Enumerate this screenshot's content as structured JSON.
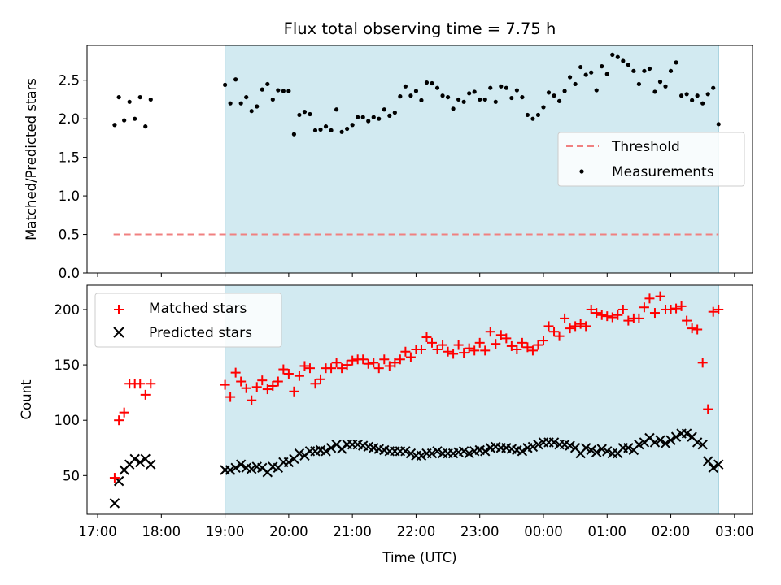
{
  "title": "Flux total observing time = 7.75 h",
  "xlabel": "Time (UTC)",
  "x_ticks": [
    "17:00",
    "18:00",
    "19:00",
    "20:00",
    "21:00",
    "22:00",
    "23:00",
    "00:00",
    "01:00",
    "02:00",
    "03:00"
  ],
  "colors": {
    "threshold": "#f08080",
    "measurements": "#000000",
    "matched": "#ff0000",
    "predicted": "#000000",
    "span": "#add8e6",
    "span_edge": "#8fc6d6"
  },
  "chart_data": [
    {
      "type": "scatter",
      "ylabel": "Matched/Predicted stars",
      "ylim": [
        0,
        2.95
      ],
      "xlim": [
        "16:50",
        "03:17"
      ],
      "y_ticks": [
        "0.0",
        "0.5",
        "1.0",
        "1.5",
        "2.0",
        "2.5"
      ],
      "y_tick_values": [
        0,
        0.5,
        1.0,
        1.5,
        2.0,
        2.5
      ],
      "shaded_span": [
        "19:00",
        "02:45"
      ],
      "legend": {
        "position": "center-right",
        "entries": [
          "Threshold",
          "Measurements"
        ]
      },
      "threshold": {
        "name": "Threshold",
        "value": 0.5,
        "x_range": [
          "17:15",
          "02:45"
        ]
      },
      "series": [
        {
          "name": "Measurements",
          "x": [
            "17:16",
            "17:20",
            "17:25",
            "17:30",
            "17:35",
            "17:40",
            "17:45",
            "17:50",
            "19:00",
            "19:05",
            "19:10",
            "19:15",
            "19:20",
            "19:25",
            "19:30",
            "19:35",
            "19:40",
            "19:45",
            "19:50",
            "19:55",
            "20:00",
            "20:05",
            "20:10",
            "20:15",
            "20:20",
            "20:25",
            "20:30",
            "20:35",
            "20:40",
            "20:45",
            "20:50",
            "20:55",
            "21:00",
            "21:05",
            "21:10",
            "21:15",
            "21:20",
            "21:25",
            "21:30",
            "21:35",
            "21:40",
            "21:45",
            "21:50",
            "21:55",
            "22:00",
            "22:05",
            "22:10",
            "22:15",
            "22:20",
            "22:25",
            "22:30",
            "22:35",
            "22:40",
            "22:45",
            "22:50",
            "22:55",
            "23:00",
            "23:05",
            "23:10",
            "23:15",
            "23:20",
            "23:25",
            "23:30",
            "23:35",
            "23:40",
            "23:45",
            "23:50",
            "23:55",
            "00:00",
            "00:05",
            "00:10",
            "00:15",
            "00:20",
            "00:25",
            "00:30",
            "00:35",
            "00:40",
            "00:45",
            "00:50",
            "00:55",
            "01:00",
            "01:05",
            "01:10",
            "01:15",
            "01:20",
            "01:25",
            "01:30",
            "01:35",
            "01:40",
            "01:45",
            "01:50",
            "01:55",
            "02:00",
            "02:05",
            "02:10",
            "02:15",
            "02:20",
            "02:25",
            "02:30",
            "02:35",
            "02:40",
            "02:45"
          ],
          "y": [
            1.92,
            2.28,
            1.98,
            2.22,
            2.0,
            2.28,
            1.9,
            2.25,
            2.44,
            2.2,
            2.51,
            2.2,
            2.28,
            2.1,
            2.16,
            2.38,
            2.45,
            2.25,
            2.37,
            2.36,
            2.36,
            1.8,
            2.05,
            2.09,
            2.06,
            1.85,
            1.86,
            1.9,
            1.85,
            2.12,
            1.83,
            1.87,
            1.92,
            2.02,
            2.02,
            1.97,
            2.02,
            2.0,
            2.12,
            2.04,
            2.08,
            2.29,
            2.42,
            2.3,
            2.36,
            2.24,
            2.47,
            2.46,
            2.4,
            2.3,
            2.28,
            2.13,
            2.25,
            2.22,
            2.33,
            2.35,
            2.25,
            2.25,
            2.4,
            2.22,
            2.42,
            2.4,
            2.27,
            2.37,
            2.28,
            2.05,
            2.0,
            2.05,
            2.15,
            2.34,
            2.3,
            2.23,
            2.36,
            2.54,
            2.45,
            2.67,
            2.57,
            2.6,
            2.37,
            2.68,
            2.58,
            2.83,
            2.8,
            2.75,
            2.7,
            2.62,
            2.45,
            2.62,
            2.65,
            2.35,
            2.48,
            2.42,
            2.62,
            2.73,
            2.3,
            2.32,
            2.24,
            2.3,
            2.2,
            2.32,
            2.4,
            1.93
          ]
        }
      ]
    },
    {
      "type": "scatter",
      "ylabel": "Count",
      "ylim": [
        15,
        222
      ],
      "xlim": [
        "16:50",
        "03:17"
      ],
      "y_ticks": [
        "50",
        "100",
        "150",
        "200"
      ],
      "y_tick_values": [
        50,
        100,
        150,
        200
      ],
      "shaded_span": [
        "19:00",
        "02:45"
      ],
      "legend": {
        "position": "top-left",
        "entries": [
          "Matched stars",
          "Predicted stars"
        ]
      },
      "series": [
        {
          "name": "Matched stars",
          "x": [
            "17:16",
            "17:20",
            "17:25",
            "17:30",
            "17:35",
            "17:40",
            "17:45",
            "17:50",
            "19:00",
            "19:05",
            "19:10",
            "19:15",
            "19:20",
            "19:25",
            "19:30",
            "19:35",
            "19:40",
            "19:45",
            "19:50",
            "19:55",
            "20:00",
            "20:05",
            "20:10",
            "20:15",
            "20:20",
            "20:25",
            "20:30",
            "20:35",
            "20:40",
            "20:45",
            "20:50",
            "20:55",
            "21:00",
            "21:05",
            "21:10",
            "21:15",
            "21:20",
            "21:25",
            "21:30",
            "21:35",
            "21:40",
            "21:45",
            "21:50",
            "21:55",
            "22:00",
            "22:05",
            "22:10",
            "22:15",
            "22:20",
            "22:25",
            "22:30",
            "22:35",
            "22:40",
            "22:45",
            "22:50",
            "22:55",
            "23:00",
            "23:05",
            "23:10",
            "23:15",
            "23:20",
            "23:25",
            "23:30",
            "23:35",
            "23:40",
            "23:45",
            "23:50",
            "23:55",
            "00:00",
            "00:05",
            "00:10",
            "00:15",
            "00:20",
            "00:25",
            "00:30",
            "00:35",
            "00:40",
            "00:45",
            "00:50",
            "00:55",
            "01:00",
            "01:05",
            "01:10",
            "01:15",
            "01:20",
            "01:25",
            "01:30",
            "01:35",
            "01:40",
            "01:45",
            "01:50",
            "01:55",
            "02:00",
            "02:05",
            "02:10",
            "02:15",
            "02:20",
            "02:25",
            "02:30",
            "02:35",
            "02:40",
            "02:45"
          ],
          "y": [
            48,
            100,
            107,
            133,
            133,
            133,
            123,
            133,
            132,
            121,
            143,
            135,
            129,
            118,
            130,
            136,
            128,
            131,
            135,
            146,
            142,
            126,
            140,
            149,
            147,
            133,
            137,
            147,
            147,
            152,
            147,
            150,
            154,
            155,
            155,
            151,
            152,
            147,
            155,
            149,
            152,
            155,
            162,
            157,
            164,
            164,
            175,
            170,
            164,
            168,
            162,
            160,
            168,
            161,
            165,
            163,
            170,
            163,
            180,
            169,
            177,
            174,
            167,
            164,
            170,
            166,
            163,
            168,
            172,
            185,
            180,
            176,
            192,
            183,
            185,
            187,
            185,
            200,
            197,
            195,
            194,
            193,
            195,
            200,
            190,
            192,
            192,
            202,
            210,
            197,
            212,
            200,
            200,
            201,
            203,
            190,
            183,
            182,
            152,
            110,
            198,
            200
          ]
        },
        {
          "name": "Predicted stars",
          "x": [
            "17:16",
            "17:20",
            "17:25",
            "17:30",
            "17:35",
            "17:40",
            "17:45",
            "17:50",
            "19:00",
            "19:05",
            "19:10",
            "19:15",
            "19:20",
            "19:25",
            "19:30",
            "19:35",
            "19:40",
            "19:45",
            "19:50",
            "19:55",
            "20:00",
            "20:05",
            "20:10",
            "20:15",
            "20:20",
            "20:25",
            "20:30",
            "20:35",
            "20:40",
            "20:45",
            "20:50",
            "20:55",
            "21:00",
            "21:05",
            "21:10",
            "21:15",
            "21:20",
            "21:25",
            "21:30",
            "21:35",
            "21:40",
            "21:45",
            "21:50",
            "21:55",
            "22:00",
            "22:05",
            "22:10",
            "22:15",
            "22:20",
            "22:25",
            "22:30",
            "22:35",
            "22:40",
            "22:45",
            "22:50",
            "22:55",
            "23:00",
            "23:05",
            "23:10",
            "23:15",
            "23:20",
            "23:25",
            "23:30",
            "23:35",
            "23:40",
            "23:45",
            "23:50",
            "23:55",
            "00:00",
            "00:05",
            "00:10",
            "00:15",
            "00:20",
            "00:25",
            "00:30",
            "00:35",
            "00:40",
            "00:45",
            "00:50",
            "00:55",
            "01:00",
            "01:05",
            "01:10",
            "01:15",
            "01:20",
            "01:25",
            "01:30",
            "01:35",
            "01:40",
            "01:45",
            "01:50",
            "01:55",
            "02:00",
            "02:05",
            "02:10",
            "02:15",
            "02:20",
            "02:25",
            "02:30",
            "02:35",
            "02:40",
            "02:45"
          ],
          "y": [
            25,
            45,
            55,
            60,
            65,
            62,
            65,
            60,
            55,
            55,
            57,
            60,
            57,
            56,
            58,
            57,
            53,
            58,
            57,
            62,
            62,
            65,
            70,
            68,
            72,
            72,
            73,
            72,
            75,
            78,
            74,
            78,
            78,
            78,
            77,
            76,
            75,
            74,
            73,
            72,
            72,
            72,
            72,
            70,
            68,
            68,
            70,
            70,
            72,
            70,
            70,
            70,
            71,
            72,
            70,
            72,
            73,
            72,
            75,
            76,
            75,
            75,
            74,
            73,
            72,
            75,
            76,
            78,
            80,
            80,
            80,
            78,
            78,
            77,
            75,
            70,
            75,
            73,
            71,
            74,
            72,
            70,
            70,
            75,
            75,
            73,
            78,
            80,
            84,
            80,
            82,
            79,
            82,
            85,
            88,
            88,
            85,
            80,
            78,
            63,
            57,
            60
          ]
        }
      ]
    }
  ]
}
